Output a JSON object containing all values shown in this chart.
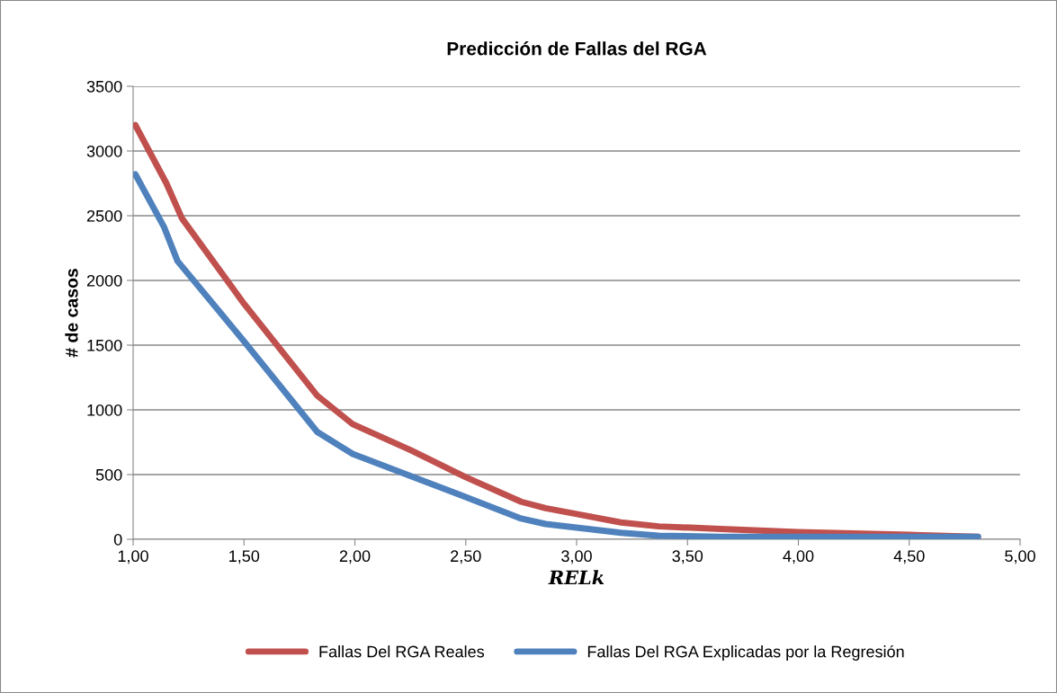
{
  "chart_data": {
    "type": "line",
    "title": "Predicción de Fallas del RGA",
    "xlabel": "RELk",
    "ylabel": "# de casos",
    "series": [
      {
        "name": "Fallas Del RGA Reales",
        "color": "#c0504d",
        "x": [
          1.01,
          1.15,
          1.22,
          1.5,
          1.83,
          1.99,
          2.25,
          2.5,
          2.75,
          2.86,
          3.0,
          3.2,
          3.37,
          3.65,
          4.0,
          4.5,
          4.81
        ],
        "values": [
          3200,
          2750,
          2480,
          1820,
          1110,
          890,
          690,
          480,
          290,
          240,
          195,
          130,
          100,
          80,
          55,
          35,
          20
        ]
      },
      {
        "name": "Fallas Del RGA Explicadas por la Regresión",
        "color": "#4f81bd",
        "x": [
          1.01,
          1.14,
          1.2,
          1.5,
          1.83,
          1.99,
          2.25,
          2.5,
          2.75,
          2.86,
          3.0,
          3.2,
          3.37,
          3.65,
          4.0,
          4.5,
          4.81
        ],
        "values": [
          2820,
          2410,
          2150,
          1530,
          830,
          660,
          490,
          326,
          160,
          118,
          90,
          50,
          28,
          20,
          20,
          20,
          20
        ]
      }
    ],
    "xlim": [
      1.0,
      5.0
    ],
    "xticks": [
      {
        "value": 1.0,
        "label": "1,00"
      },
      {
        "value": 1.5,
        "label": "1,50"
      },
      {
        "value": 2.0,
        "label": "2,00"
      },
      {
        "value": 2.5,
        "label": "2,50"
      },
      {
        "value": 3.0,
        "label": "3,00"
      },
      {
        "value": 3.5,
        "label": "3,50"
      },
      {
        "value": 4.0,
        "label": "4,00"
      },
      {
        "value": 4.5,
        "label": "4,50"
      },
      {
        "value": 5.0,
        "label": "5,00"
      }
    ],
    "ylim": [
      0,
      3500
    ],
    "yticks": [
      0,
      500,
      1000,
      1500,
      2000,
      2500,
      3000,
      3500
    ],
    "grid": "y",
    "legend": "bottom",
    "marker": "none",
    "line_style": "solid"
  }
}
